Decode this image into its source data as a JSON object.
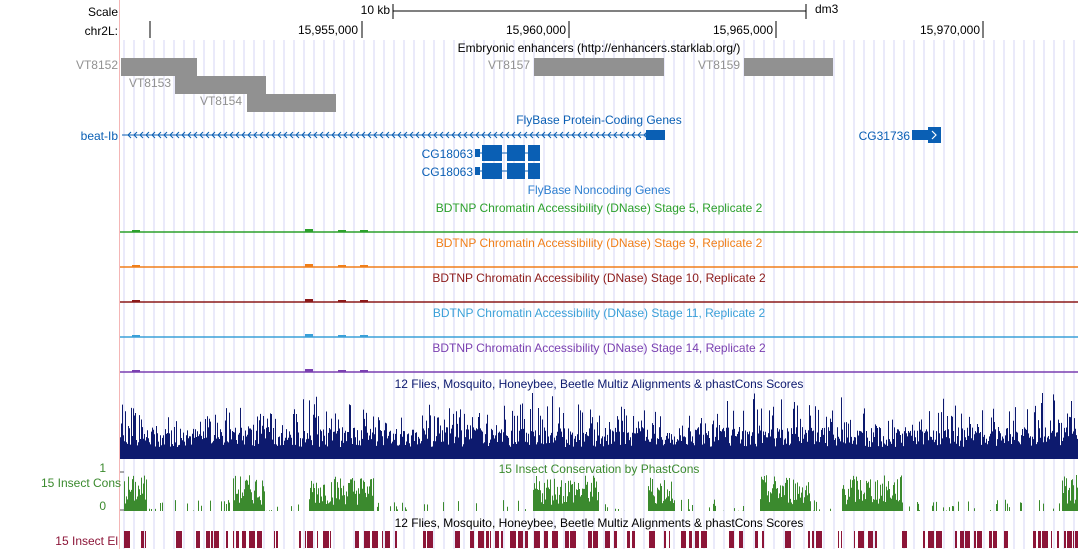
{
  "scale": {
    "label": "Scale",
    "bar_label": "10 kb",
    "assembly": "dm3"
  },
  "ruler": {
    "chrom_label": "chr2L:",
    "ticks": [
      "15,955,000",
      "15,960,000",
      "15,965,000",
      "15,970,000"
    ]
  },
  "tracks": {
    "enhancers": {
      "title": "Embryonic enhancers (http://enhancers.starklab.org/)",
      "color": "#919191",
      "items": [
        "VT8152",
        "VT8153",
        "VT8154",
        "VT8157",
        "VT8159"
      ]
    },
    "flybase_coding": {
      "title": "FlyBase Protein-Coding Genes",
      "color": "#0a5fb4",
      "genes": [
        "beat-Ib",
        "CG31736"
      ]
    },
    "flybase_noncoding": {
      "title": "FlyBase Noncoding Genes",
      "color": "#2e7fd0",
      "genes": [
        "CG18063",
        "CG18063"
      ]
    },
    "dnase": [
      {
        "title": "BDTNP Chromatin Accessibility (DNase) Stage 5, Replicate 2",
        "color": "#2ca02c"
      },
      {
        "title": "BDTNP Chromatin Accessibility (DNase) Stage 9, Replicate 2",
        "color": "#f07f19"
      },
      {
        "title": "BDTNP Chromatin Accessibility (DNase) Stage 10, Replicate 2",
        "color": "#8c1a1a"
      },
      {
        "title": "BDTNP Chromatin Accessibility (DNase) Stage 11, Replicate 2",
        "color": "#3aa0d8"
      },
      {
        "title": "BDTNP Chromatin Accessibility (DNase) Stage 14, Replicate 2",
        "color": "#7a3fb0"
      }
    ],
    "multiz": {
      "title": "12 Flies, Mosquito, Honeybee, Beetle Multiz Alignments & phastCons Scores",
      "color": "#0d1a6e"
    },
    "cons15": {
      "title": "15 Insect Conservation by PhastCons",
      "side_label": "15 Insect Cons",
      "y_max": "1",
      "y_min": "0",
      "color": "#3b8a2e"
    },
    "el15": {
      "title": "12 Flies, Mosquito, Honeybee, Beetle Multiz Alignments & phastCons Scores",
      "side_label": "15 Insect El",
      "color": "#8c1538"
    }
  },
  "colors": {
    "grid": "#d4d4f4",
    "ruler_text": "#000000"
  }
}
